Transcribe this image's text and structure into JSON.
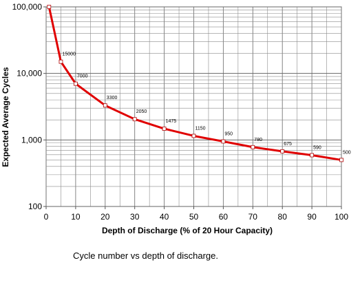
{
  "chart_data": {
    "type": "line",
    "xlabel": "Depth of Discharge (% of 20 Hour Capacity)",
    "ylabel": "Expected Average Cycles",
    "xlim": [
      0,
      100
    ],
    "ylim": [
      100,
      100000
    ],
    "y_scale": "log",
    "grid": true,
    "x_ticks": [
      0,
      10,
      20,
      30,
      40,
      50,
      60,
      70,
      80,
      90,
      100
    ],
    "x_tick_labels": [
      "0",
      "10",
      "20",
      "30",
      "40",
      "50",
      "60",
      "70",
      "80",
      "90",
      "100"
    ],
    "y_ticks": [
      100,
      1000,
      10000,
      100000
    ],
    "y_tick_labels": [
      "100",
      "1,000",
      "10,000",
      "100,000"
    ],
    "series_color": "#e00000",
    "grid_color": "#8a8a8a",
    "x": [
      1,
      5,
      10,
      20,
      30,
      40,
      50,
      60,
      70,
      80,
      90,
      100
    ],
    "y": [
      100000,
      15000,
      7000,
      3300,
      2050,
      1475,
      1150,
      950,
      780,
      675,
      590,
      500
    ],
    "data_labels": [
      "",
      "15000",
      "7000",
      "3300",
      "2050",
      "1475",
      "1150",
      "950",
      "780",
      "675",
      "590",
      "500"
    ]
  },
  "caption": "Cycle number vs depth of discharge."
}
